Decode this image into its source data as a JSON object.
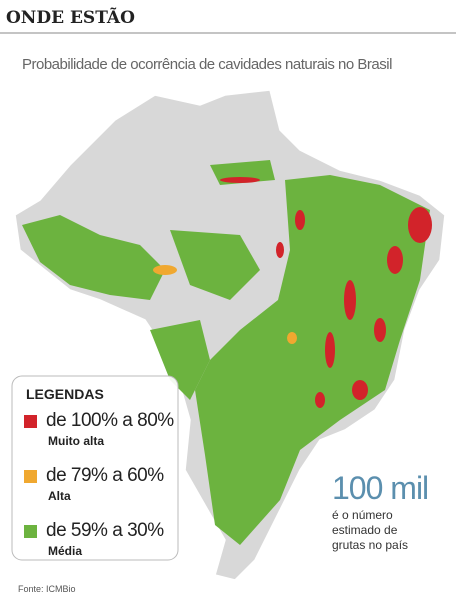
{
  "header": {
    "title": "ONDE ESTÃO",
    "subtitle": "Probabilidade de ocorrência de cavidades naturais no Brasil"
  },
  "legend": {
    "title": "LEGENDAS",
    "items": [
      {
        "range": "de 100% a 80%",
        "label": "Muito alta",
        "color": "#d2232a"
      },
      {
        "range": "de 79% a 60%",
        "label": "Alta",
        "color": "#f0a830"
      },
      {
        "range": "de 59% a 30%",
        "label": "Média",
        "color": "#6cb33f"
      }
    ]
  },
  "highlight": {
    "value": "100 mil",
    "caption": [
      "é o número",
      "estimado de",
      "grutas no país"
    ]
  },
  "source": "Fonte: ICMBio"
}
